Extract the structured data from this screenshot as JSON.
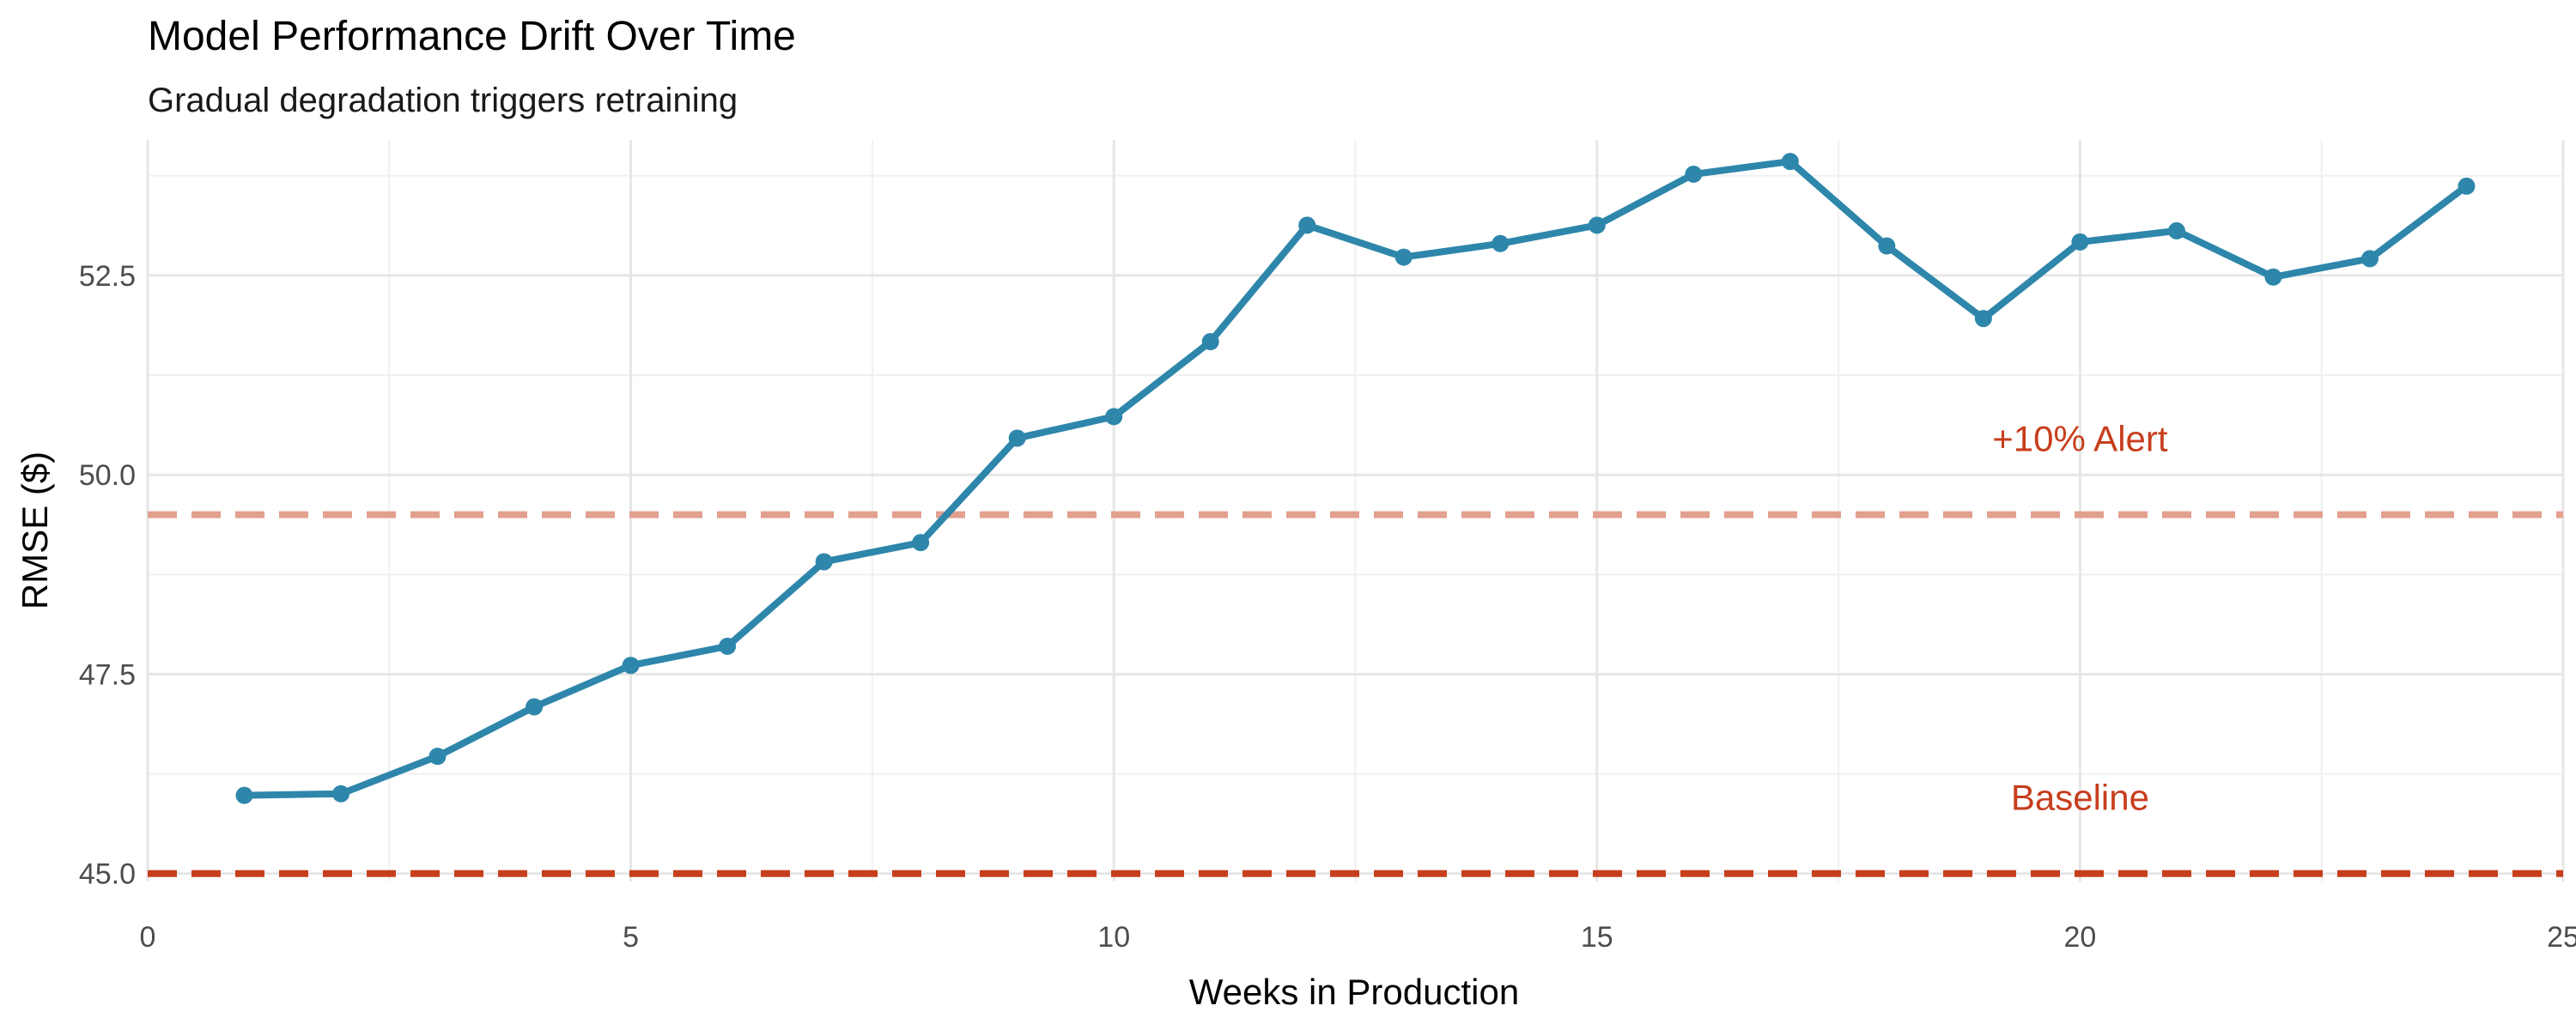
{
  "chart_data": {
    "type": "line",
    "title": "Model Performance Drift Over Time",
    "subtitle": "Gradual degradation triggers retraining",
    "xlabel": "Weeks in Production",
    "ylabel": "RMSE ($)",
    "xlim": [
      0,
      25
    ],
    "ylim": [
      44.9,
      54.2
    ],
    "xticks": [
      0,
      5,
      10,
      15,
      20,
      25
    ],
    "yticks": [
      45.0,
      47.5,
      50.0,
      52.5
    ],
    "ytick_labels": [
      "45.0",
      "47.5",
      "50.0",
      "52.5"
    ],
    "grid": true,
    "series": [
      {
        "x": [
          1,
          2,
          3,
          4,
          5,
          6,
          7,
          8,
          9,
          10,
          11,
          12,
          13,
          14,
          15,
          16,
          17,
          18,
          19,
          20,
          21,
          22,
          23,
          24
        ],
        "y": [
          45.98,
          46.0,
          46.47,
          47.09,
          47.61,
          47.85,
          48.91,
          49.15,
          50.46,
          50.73,
          51.67,
          53.13,
          52.73,
          52.9,
          53.13,
          53.77,
          53.93,
          52.87,
          51.96,
          52.92,
          53.06,
          52.48,
          52.71,
          53.62
        ],
        "color": "#2E86AB"
      }
    ],
    "reference_lines": [
      {
        "label": "Baseline",
        "y": 45.0,
        "color": "#C73E1D"
      },
      {
        "label": "+10% Alert",
        "y": 49.5,
        "color": "#E2A08F"
      }
    ],
    "annotations": [
      {
        "text": "+10% Alert",
        "x": 20,
        "y": 50.45,
        "color": "#C73E1D"
      },
      {
        "text": "Baseline",
        "x": 20,
        "y": 45.95,
        "color": "#C73E1D"
      }
    ]
  }
}
